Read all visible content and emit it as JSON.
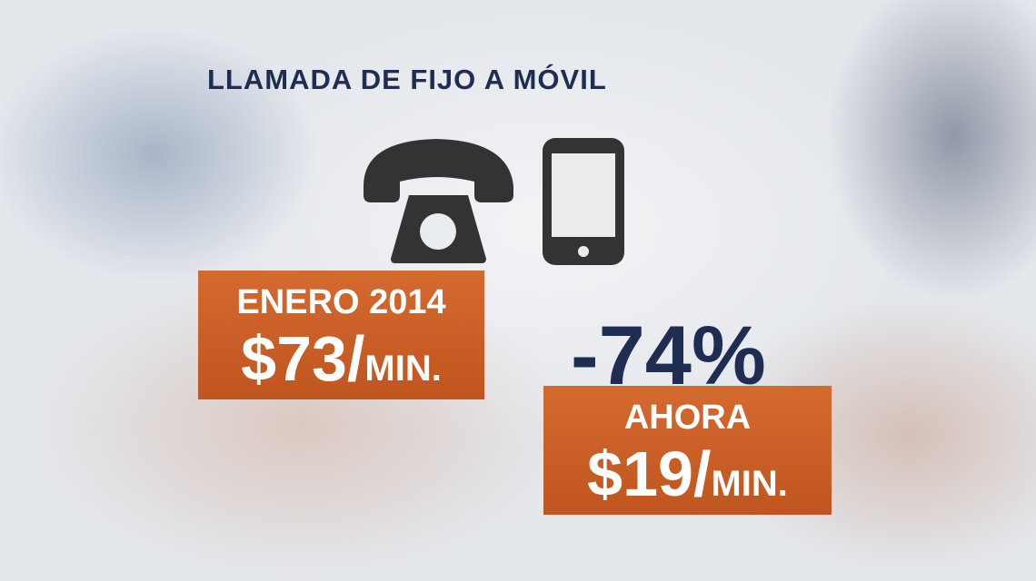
{
  "title": "LLAMADA DE FIJO A MÓVIL",
  "before": {
    "label": "ENERO 2014",
    "price": "$73/",
    "unit": "MIN."
  },
  "change": "-74%",
  "now": {
    "label": "AHORA",
    "price": "$19/",
    "unit": "MIN."
  }
}
